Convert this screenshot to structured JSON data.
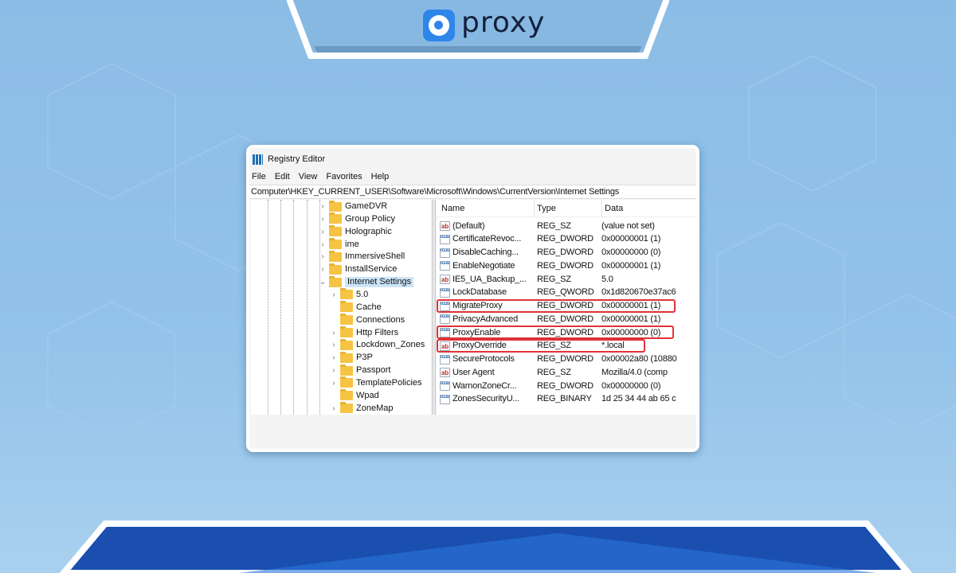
{
  "brand": {
    "name": "proxy",
    "accent": "#2f86ea",
    "highlight": "#e03238"
  },
  "window": {
    "title": "Registry Editor"
  },
  "menu": [
    "File",
    "Edit",
    "View",
    "Favorites",
    "Help"
  ],
  "address": "Computer\\HKEY_CURRENT_USER\\Software\\Microsoft\\Windows\\CurrentVersion\\Internet Settings",
  "tree": [
    {
      "label": "GameDVR",
      "level": 1,
      "chevron": "right"
    },
    {
      "label": "Group Policy",
      "level": 1,
      "chevron": "right"
    },
    {
      "label": "Holographic",
      "level": 1,
      "chevron": "right"
    },
    {
      "label": "ime",
      "level": 1,
      "chevron": "right"
    },
    {
      "label": "ImmersiveShell",
      "level": 1,
      "chevron": "right"
    },
    {
      "label": "InstallService",
      "level": 1,
      "chevron": "right"
    },
    {
      "label": "Internet Settings",
      "level": 1,
      "chevron": "down",
      "selected": true
    },
    {
      "label": "5.0",
      "level": 2,
      "chevron": "right"
    },
    {
      "label": "Cache",
      "level": 2,
      "chevron": ""
    },
    {
      "label": "Connections",
      "level": 2,
      "chevron": ""
    },
    {
      "label": "Http Filters",
      "level": 2,
      "chevron": "right"
    },
    {
      "label": "Lockdown_Zones",
      "level": 2,
      "chevron": "right"
    },
    {
      "label": "P3P",
      "level": 2,
      "chevron": "right"
    },
    {
      "label": "Passport",
      "level": 2,
      "chevron": "right"
    },
    {
      "label": "TemplatePolicies",
      "level": 2,
      "chevron": "right"
    },
    {
      "label": "Wpad",
      "level": 2,
      "chevron": ""
    },
    {
      "label": "ZoneMap",
      "level": 2,
      "chevron": "right"
    }
  ],
  "columns": {
    "name": "Name",
    "type": "Type",
    "data": "Data"
  },
  "values": [
    {
      "name": "(Default)",
      "type": "REG_SZ",
      "data": "(value not set)",
      "icon": "string-icon"
    },
    {
      "name": "CertificateRevoc...",
      "type": "REG_DWORD",
      "data": "0x00000001 (1)",
      "icon": "binary-icon"
    },
    {
      "name": "DisableCaching...",
      "type": "REG_DWORD",
      "data": "0x00000000 (0)",
      "icon": "binary-icon"
    },
    {
      "name": "EnableNegotiate",
      "type": "REG_DWORD",
      "data": "0x00000001 (1)",
      "icon": "binary-icon"
    },
    {
      "name": "IE5_UA_Backup_...",
      "type": "REG_SZ",
      "data": "5.0",
      "icon": "string-icon"
    },
    {
      "name": "LockDatabase",
      "type": "REG_QWORD",
      "data": "0x1d820670e37ac6",
      "icon": "binary-icon"
    },
    {
      "name": "MigrateProxy",
      "type": "REG_DWORD",
      "data": "0x00000001 (1)",
      "icon": "binary-icon",
      "highlighted": true
    },
    {
      "name": "PrivacyAdvanced",
      "type": "REG_DWORD",
      "data": "0x00000001 (1)",
      "icon": "binary-icon"
    },
    {
      "name": "ProxyEnable",
      "type": "REG_DWORD",
      "data": "0x00000000 (0)",
      "icon": "binary-icon",
      "highlighted": true
    },
    {
      "name": "ProxyOverride",
      "type": "REG_SZ",
      "data": "*.local",
      "icon": "string-icon",
      "highlighted": true
    },
    {
      "name": "SecureProtocols",
      "type": "REG_DWORD",
      "data": "0x00002a80 (10880",
      "icon": "binary-icon"
    },
    {
      "name": "User Agent",
      "type": "REG_SZ",
      "data": "Mozilla/4.0 (comp",
      "icon": "string-icon"
    },
    {
      "name": "WarnonZoneCr...",
      "type": "REG_DWORD",
      "data": "0x00000000 (0)",
      "icon": "binary-icon"
    },
    {
      "name": "ZonesSecurityU...",
      "type": "REG_BINARY",
      "data": "1d 25 34 44 ab 65 c",
      "icon": "binary-icon"
    }
  ]
}
